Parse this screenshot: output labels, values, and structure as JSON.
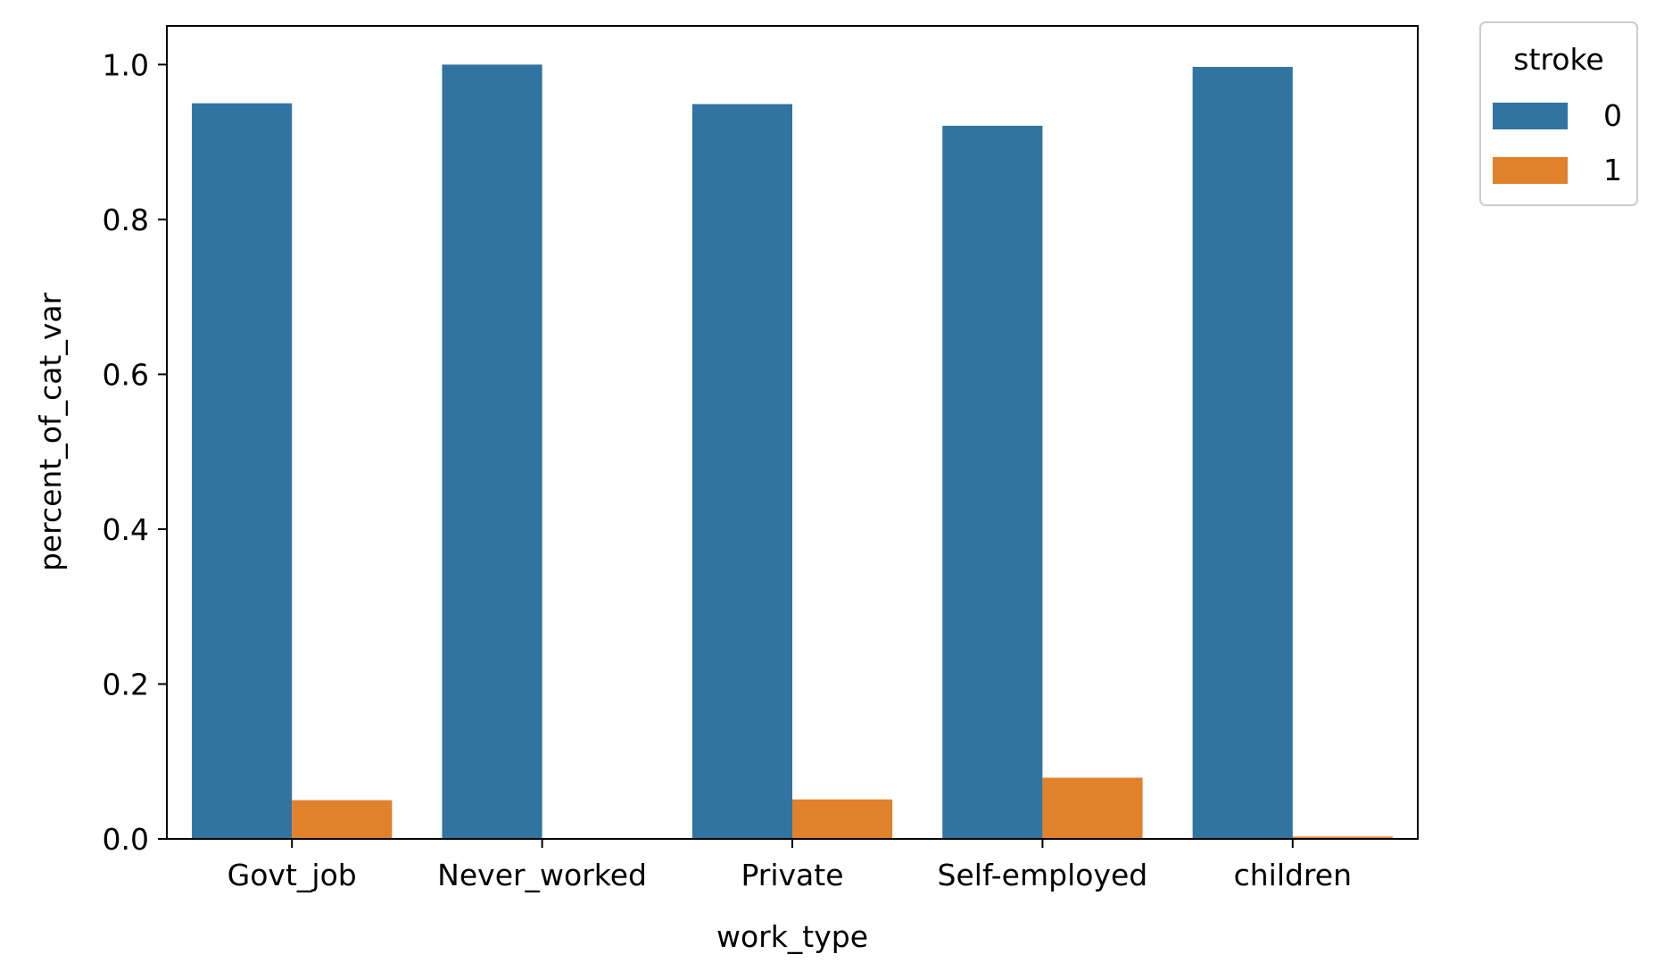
{
  "chart_data": {
    "type": "bar",
    "title": "",
    "xlabel": "work_type",
    "ylabel": "percent_of_cat_var",
    "categories": [
      "Govt_job",
      "Never_worked",
      "Private",
      "Self-employed",
      "children"
    ],
    "series": [
      {
        "name": "0",
        "color": "#3274a1",
        "values": [
          0.95,
          1.0,
          0.949,
          0.921,
          0.997
        ]
      },
      {
        "name": "1",
        "color": "#e1812c",
        "values": [
          0.05,
          0.0,
          0.051,
          0.079,
          0.003
        ]
      }
    ],
    "ylim": [
      0,
      1.05
    ],
    "yticks": [
      "0.0",
      "0.2",
      "0.4",
      "0.6",
      "0.8",
      "1.0"
    ],
    "ytick_values": [
      0,
      0.2,
      0.4,
      0.6,
      0.8,
      1.0
    ],
    "grid": false,
    "legend": {
      "title": "stroke",
      "placement": "outside-top-right"
    }
  }
}
